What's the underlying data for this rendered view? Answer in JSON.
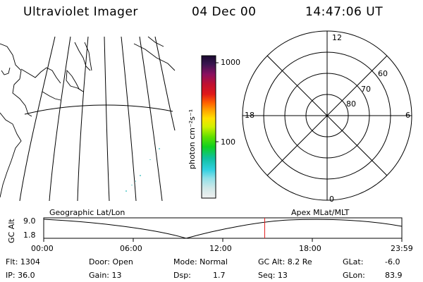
{
  "header": {
    "instrument": "Ultraviolet Imager",
    "date": "04 Dec 00",
    "time": "14:47:06 UT"
  },
  "colorbar": {
    "label": "photon cm⁻²s⁻¹",
    "ticks": [
      "1000",
      "100"
    ]
  },
  "polar": {
    "mlt_labels": [
      "12",
      "18",
      "6",
      "0"
    ],
    "lat_labels": [
      "60",
      "70",
      "80"
    ]
  },
  "panel_labels": {
    "left": "Geographic Lat/Lon",
    "right": "Apex MLat/MLT"
  },
  "altitude_plot": {
    "ylabel": "GC Alt",
    "yticks": [
      "9.0",
      "1.8"
    ],
    "xticks": [
      "00:00",
      "06:00",
      "12:00",
      "18:00",
      "23:59"
    ],
    "current_time_fraction": 0.616
  },
  "info": {
    "flt": "Flt: 1304",
    "ip": "IP: 36.0",
    "door": "Door: Open",
    "gain": "Gain: 13",
    "mode": "Mode: Normal",
    "dsp_label": "Dsp:",
    "dsp_value": "1.7",
    "gc_alt": "GC Alt: 8.2 Re",
    "seq": "Seq: 13",
    "glat_label": "GLat:",
    "glat_value": "-6.0",
    "glon_label": "GLon:",
    "glon_value": "83.9"
  }
}
